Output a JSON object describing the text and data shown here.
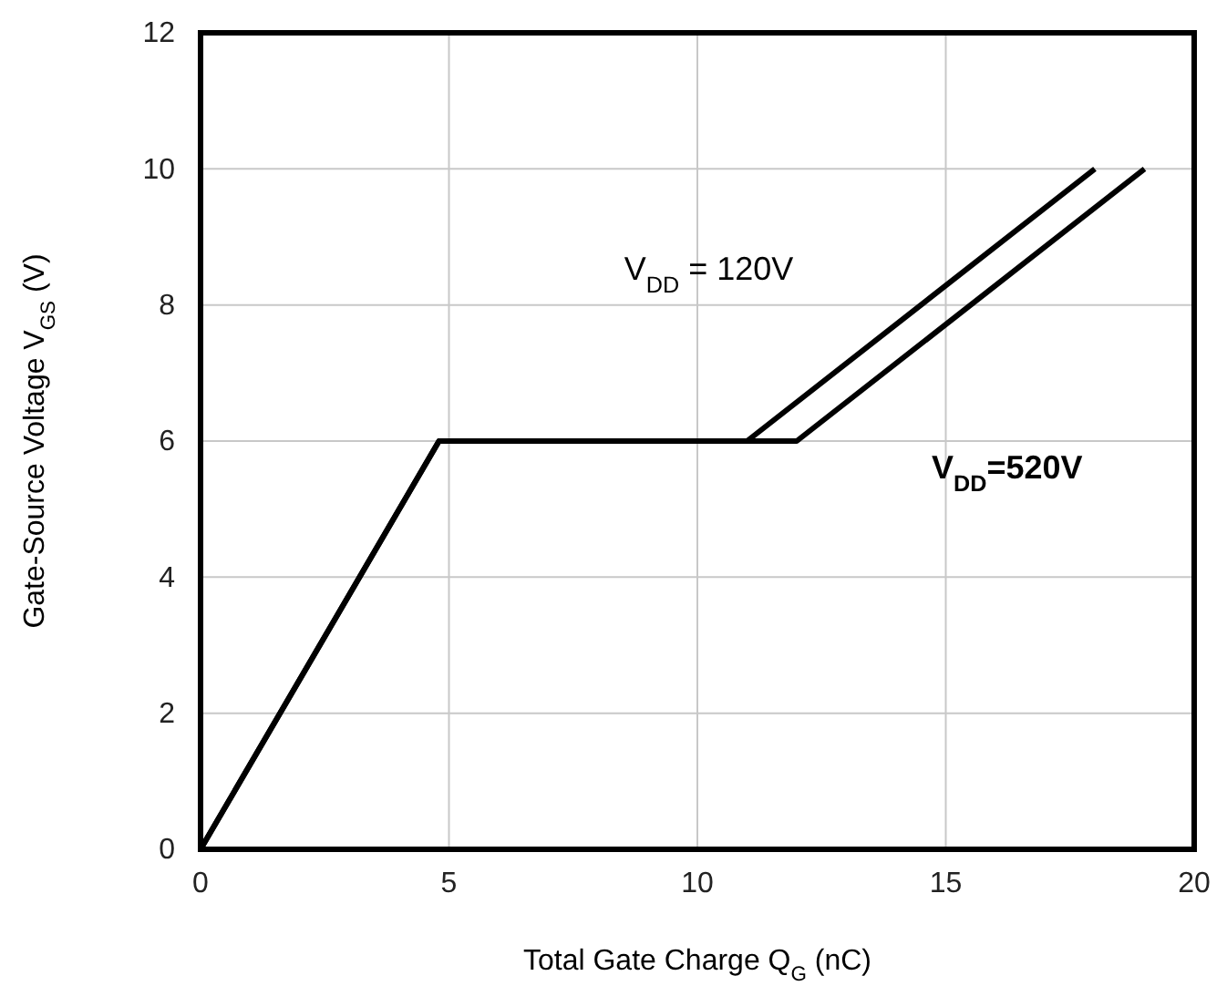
{
  "chart_data": {
    "type": "line",
    "xlabel": "Total Gate Charge Q$_{G}$ (nC)",
    "ylabel": "Gate-Source Voltage V$_{GS}$ (V)",
    "xlim": [
      0,
      20
    ],
    "xticks": [
      0,
      5,
      10,
      15,
      20
    ],
    "ylim": [
      0,
      12
    ],
    "yticks": [
      0,
      2,
      4,
      6,
      8,
      10,
      12
    ],
    "grid": true,
    "marker": "none",
    "line_style": "solid",
    "series": [
      {
        "name": "V$_{DD}$ = 120V",
        "color": "#000000",
        "x": [
          0,
          4.8,
          11,
          18
        ],
        "values": [
          0,
          6,
          6,
          10
        ]
      },
      {
        "name": "V$_{DD}$=520V",
        "color": "#000000",
        "x": [
          0,
          4.8,
          12,
          19
        ],
        "values": [
          0,
          6,
          6,
          10
        ]
      }
    ]
  }
}
